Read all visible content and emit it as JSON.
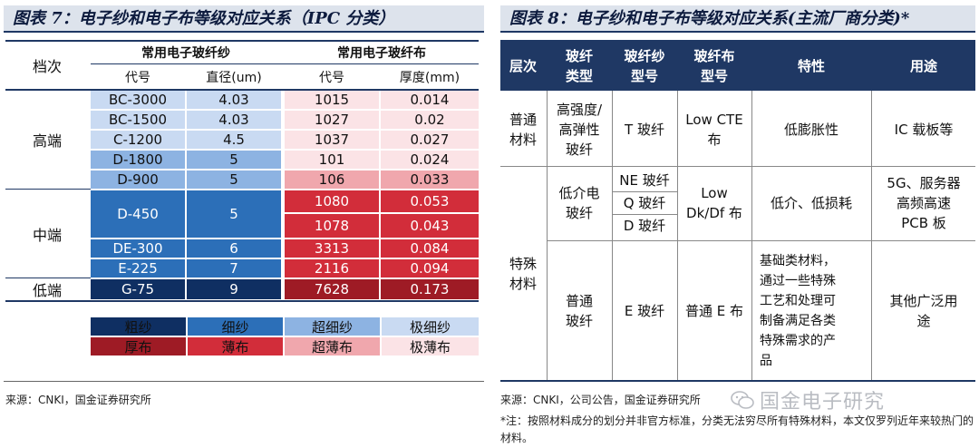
{
  "left": {
    "title": "图表 7：电子纱和电子布等级对应关系（IPC 分类）",
    "header": {
      "level": "档次",
      "yarn_group": "常用电子玻纤纱",
      "cloth_group": "常用电子玻纤布",
      "yarn_code": "代号",
      "yarn_diameter": "直径(um)",
      "cloth_code": "代号",
      "cloth_thickness": "厚度(mm)"
    },
    "levels": {
      "high": "高端",
      "mid": "中端",
      "low": "低端"
    },
    "yarn_rows": [
      {
        "code": "BC-3000",
        "diameter": "4.03"
      },
      {
        "code": "BC-1500",
        "diameter": "4.03"
      },
      {
        "code": "C-1200",
        "diameter": "4.5"
      },
      {
        "code": "D-1800",
        "diameter": "5"
      },
      {
        "code": "D-900",
        "diameter": "5"
      },
      {
        "code": "D-450",
        "diameter": "5"
      },
      {
        "code": "DE-300",
        "diameter": "6"
      },
      {
        "code": "E-225",
        "diameter": "7"
      },
      {
        "code": "G-75",
        "diameter": "9"
      }
    ],
    "cloth_rows": [
      {
        "code": "1015",
        "thickness": "0.014"
      },
      {
        "code": "1027",
        "thickness": "0.02"
      },
      {
        "code": "1037",
        "thickness": "0.027"
      },
      {
        "code": "101",
        "thickness": "0.024"
      },
      {
        "code": "106",
        "thickness": "0.033"
      },
      {
        "code": "1080",
        "thickness": "0.053"
      },
      {
        "code": "1078",
        "thickness": "0.043"
      },
      {
        "code": "3313",
        "thickness": "0.084"
      },
      {
        "code": "2116",
        "thickness": "0.094"
      },
      {
        "code": "7628",
        "thickness": "0.173"
      }
    ],
    "legend": {
      "yarn": [
        "粗纱",
        "细纱",
        "超细纱",
        "极细纱"
      ],
      "cloth": [
        "厚布",
        "薄布",
        "超薄布",
        "极薄布"
      ]
    },
    "source": "来源：CNKI，国金证券研究所"
  },
  "right": {
    "title": "图表 8：电子纱和电子布等级对应关系(主流厂商分类)*",
    "header": {
      "level": "层次",
      "fiber_type": "玻纤\n类型",
      "yarn_type": "玻纤纱\n型号",
      "cloth_type": "玻纤布\n型号",
      "property": "特性",
      "usage": "用途"
    },
    "rows": {
      "general_level": "普通\n材料",
      "general_fiber": "高强度/\n高弹性\n玻纤",
      "general_yarn": "T 玻纤",
      "general_cloth": "Low CTE\n布",
      "general_property": "低膨胀性",
      "general_usage": "IC 载板等",
      "special_level": "特殊\n材料",
      "lowdk_fiber": "低介电\n玻纤",
      "lowdk_yarns": [
        "NE 玻纤",
        "Q 玻纤",
        "D 玻纤"
      ],
      "lowdk_cloth": "Low\nDk/Df 布",
      "lowdk_property": "低介、低损耗",
      "lowdk_usage": "5G、服务器\n高频高速\nPCB 板",
      "normal_fiber": "普通\n玻纤",
      "normal_yarn": "E 玻纤",
      "normal_cloth": "普通 E 布",
      "normal_property": "基础类材料，\n通过一些特殊\n工艺和处理可\n制备满足各类\n特殊需求的产\n品",
      "normal_usage": "其他广泛用\n途"
    },
    "source": "来源：CNKI，公司公告，国金证券研究所",
    "note": "*注：按照材料成分的划分并非官方标准，分类无法穷尽所有特殊材料，本文仅罗列近年来较热门的材料。"
  },
  "watermark": "国金电子研究",
  "colors": {
    "navy": "#1f3864",
    "blue_light": "#c9daf2",
    "blue_mid": "#8db3e2",
    "blue_dark": "#2c6fb8",
    "blue_deep": "#0f2f62",
    "red_light": "#fbe3e6",
    "red_mid": "#f0a7ad",
    "red_dark": "#d22d3a",
    "red_deep": "#9e1b25"
  }
}
